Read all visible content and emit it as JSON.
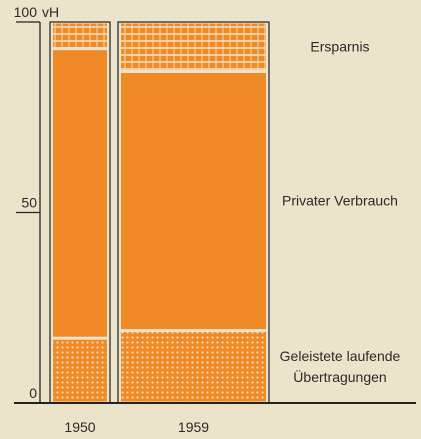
{
  "chart_data": {
    "type": "stacked_bar",
    "unit": "vH",
    "categories": [
      "1950",
      "1959"
    ],
    "series": [
      {
        "name": "Geleistete laufende Übertragungen",
        "color": "#ef8a26",
        "pattern": "dots",
        "values": [
          17,
          19
        ]
      },
      {
        "name": "Privater Verbrauch",
        "color": "#ef8a26",
        "pattern": "solid",
        "values": [
          76,
          68
        ]
      },
      {
        "name": "Ersparnis",
        "color": "#ef8a26",
        "pattern": "grid",
        "values": [
          7,
          13
        ]
      }
    ],
    "ylim": [
      0,
      100
    ],
    "yticks": [
      0,
      50,
      100
    ]
  }
}
